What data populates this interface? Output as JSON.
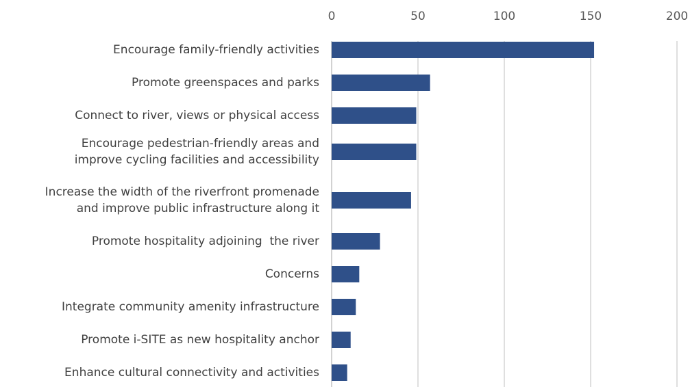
{
  "chart_data": {
    "type": "bar",
    "orientation": "horizontal",
    "categories": [
      "Encourage family-friendly activities",
      "Promote greenspaces and parks",
      "Connect to river, views or physical access",
      "Encourage pedestrian-friendly areas and\nimprove cycling facilities and accessibility",
      "Increase the width of the riverfront promenade\nand improve public infrastructure along it",
      "Promote hospitality adjoining  the river",
      "Concerns",
      "Integrate community amenity infrastructure",
      "Promote i-SITE as new hospitality anchor",
      "Enhance cultural connectivity and activities"
    ],
    "values": [
      152,
      57,
      49,
      49,
      46,
      28,
      16,
      14,
      11,
      9
    ],
    "color": "#2f5089",
    "xlim": [
      0,
      200
    ],
    "xticks": [
      0,
      50,
      100,
      150,
      200
    ],
    "grid": true
  }
}
